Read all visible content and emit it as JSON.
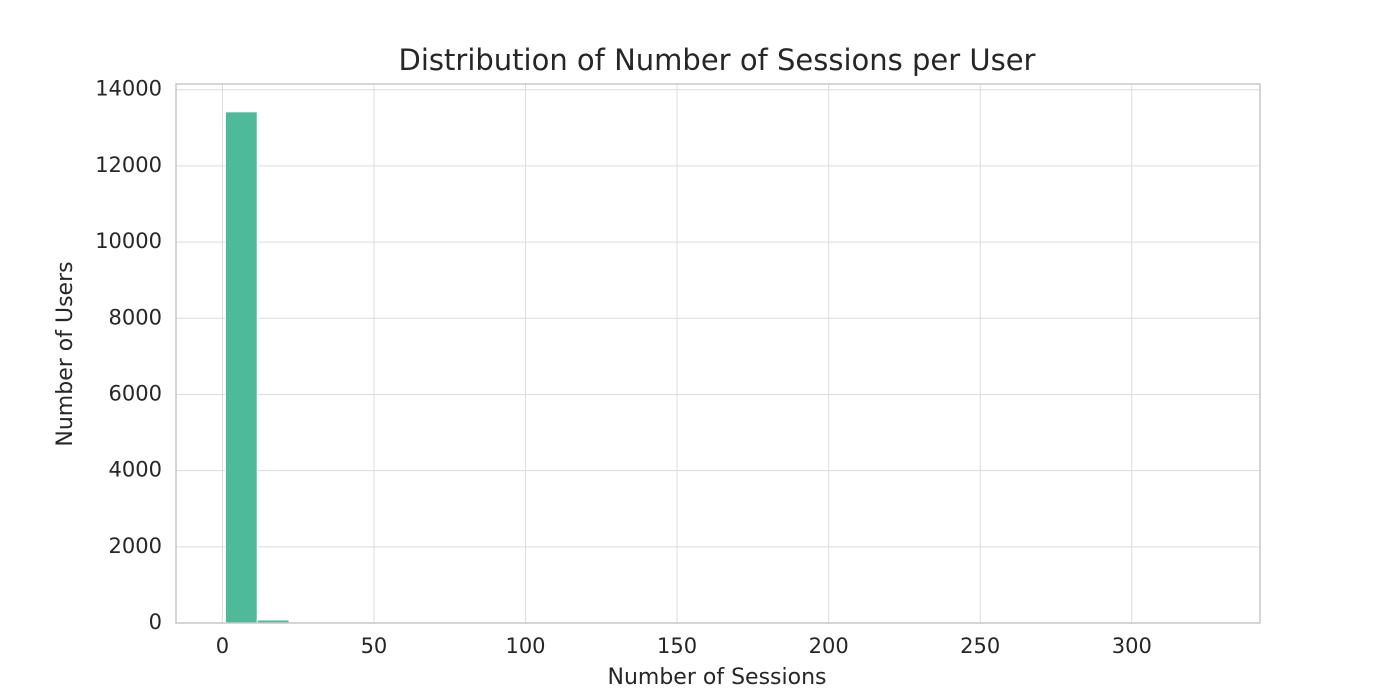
{
  "chart_data": {
    "type": "histogram",
    "title": "Distribution of Number of Sessions per User",
    "x_label": "Number of Sessions",
    "y_label": "Number of Users",
    "bins": [
      1,
      11.5,
      22,
      32.5,
      43,
      53.5,
      64,
      74.5,
      85,
      95.5,
      106,
      116.5,
      127,
      137.5,
      148,
      158.5,
      169,
      179.5,
      190,
      200.5,
      211,
      221.5,
      232,
      242.5,
      253,
      263.5,
      274,
      284.5,
      295,
      305.5,
      316,
      326.5
    ],
    "values": [
      13420,
      80,
      15,
      6,
      3,
      2,
      1,
      1,
      1,
      0,
      1,
      0,
      0,
      0,
      0,
      0,
      0,
      0,
      0,
      0,
      0,
      0,
      0,
      0,
      0,
      0,
      0,
      0,
      0,
      0,
      1
    ],
    "color": "#45b695",
    "xlim": [
      -15.3,
      342.3
    ],
    "xticks": [
      0,
      50,
      100,
      150,
      200,
      250,
      300
    ],
    "ylim": [
      0,
      14150
    ],
    "yticks": [
      0,
      2000,
      4000,
      6000,
      8000,
      10000,
      12000,
      14000
    ],
    "grid": true
  }
}
